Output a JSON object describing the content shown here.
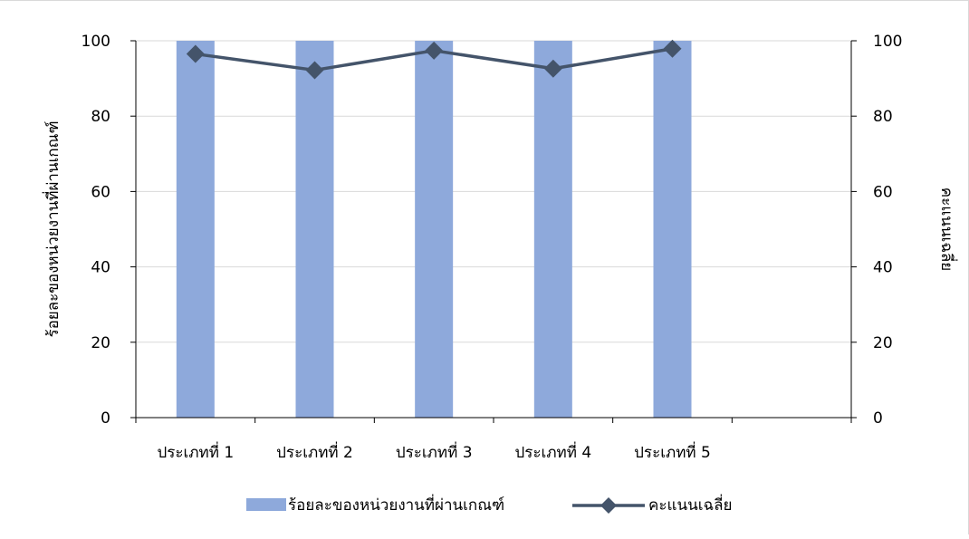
{
  "chart_data": {
    "type": "bar",
    "categories": [
      "ประเภทที่ 1",
      "ประเภทที่ 2",
      "ประเภทที่ 3",
      "ประเภทที่ 4",
      "ประเภทที่ 5"
    ],
    "series": [
      {
        "name": "ร้อยละของหน่วยงานที่ผ่านเกณฑ์",
        "type": "bar",
        "axis": "left",
        "values": [
          100,
          100,
          100,
          100,
          100
        ],
        "color": "#8EA9DB"
      },
      {
        "name": "คะแนนเฉลี่ย",
        "type": "line",
        "axis": "right",
        "marker": "diamond",
        "values": [
          96.5,
          92.2,
          97.4,
          92.6,
          97.9
        ],
        "color": "#44546A"
      }
    ],
    "title": "",
    "xlabel": "",
    "ylabel": "ร้อยละของหน่วยงานที่ผ่านเกณฑ์",
    "y2label": "คะแนนเฉลี่ย",
    "ylim": [
      0,
      100
    ],
    "y2lim": [
      0,
      100
    ],
    "yticks": [
      0,
      20,
      40,
      60,
      80,
      100
    ],
    "y2ticks": [
      0,
      20,
      40,
      60,
      80,
      100
    ],
    "category_slots": 6,
    "grid": true,
    "legend": "bottom"
  }
}
